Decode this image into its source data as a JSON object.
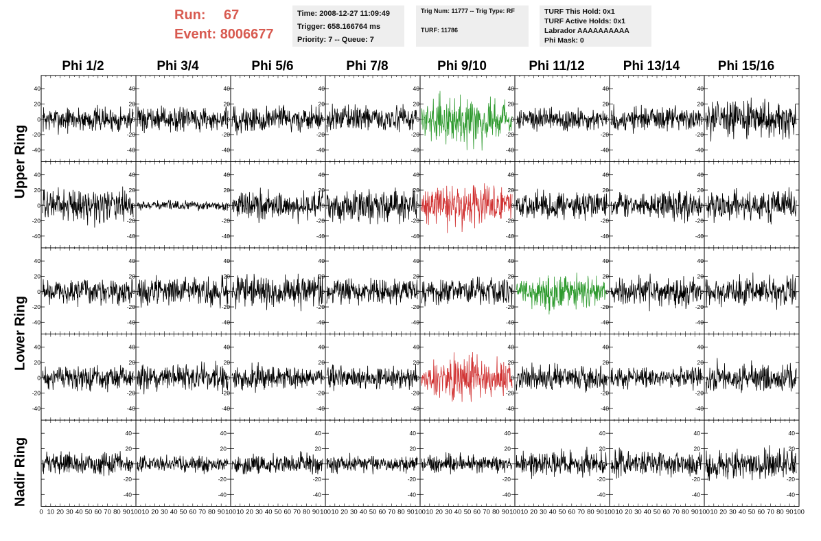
{
  "run_label": "Run:",
  "run_value": "67",
  "event_label": "Event:",
  "event_value": "8006677",
  "info": {
    "time": "Time: 2008-12-27 11:09:49",
    "trigger": "Trigger: 658.166764 ms",
    "priority": "Priority: 7 -- Queue: 7",
    "trig_num": "Trig Num: 11777 -- Trig Type: RF",
    "turf": "TURF: 11786",
    "turf_this_hold": "TURF This Hold: 0x1",
    "turf_active_holds": "TURF Active Holds: 0x1",
    "labrador": "Labrador AAAAAAAAAA",
    "phi_mask": "Phi Mask: 0"
  },
  "columns": [
    "Phi 1/2",
    "Phi 3/4",
    "Phi 5/6",
    "Phi 7/8",
    "Phi 9/10",
    "Phi 11/12",
    "Phi 13/14",
    "Phi 15/16"
  ],
  "rows": [
    "Upper Ring",
    "Lower Ring",
    "Nadir Ring"
  ],
  "colors": {
    "trace": "#000000",
    "green": "#2e9a2e",
    "red": "#d03030",
    "label_red": "#d85a50",
    "info_bg": "#eeeeee"
  },
  "chart_data": {
    "type": "line",
    "description_rows": 5,
    "description_cols": 8,
    "ylim": [
      -50,
      50
    ],
    "yticks": [
      -40,
      -20,
      0,
      20,
      40
    ],
    "xlim": [
      0,
      100
    ],
    "xticks": [
      0,
      10,
      20,
      30,
      40,
      50,
      60,
      70,
      80,
      90,
      100
    ],
    "samples_per_trace": 260,
    "panels_highlight": [
      {
        "row": 0,
        "col": 4,
        "color": "green"
      },
      {
        "row": 1,
        "col": 4,
        "color": "red"
      },
      {
        "row": 2,
        "col": 5,
        "color": "green"
      },
      {
        "row": 3,
        "col": 4,
        "color": "red"
      }
    ],
    "amplitudes": [
      [
        14,
        13,
        15,
        14,
        24,
        13,
        14,
        20
      ],
      [
        18,
        5,
        16,
        18,
        22,
        15,
        15,
        16
      ],
      [
        14,
        15,
        17,
        14,
        15,
        18,
        16,
        16
      ],
      [
        13,
        15,
        13,
        13,
        22,
        14,
        11,
        16
      ],
      [
        12,
        9,
        11,
        10,
        10,
        14,
        14,
        16
      ]
    ]
  }
}
